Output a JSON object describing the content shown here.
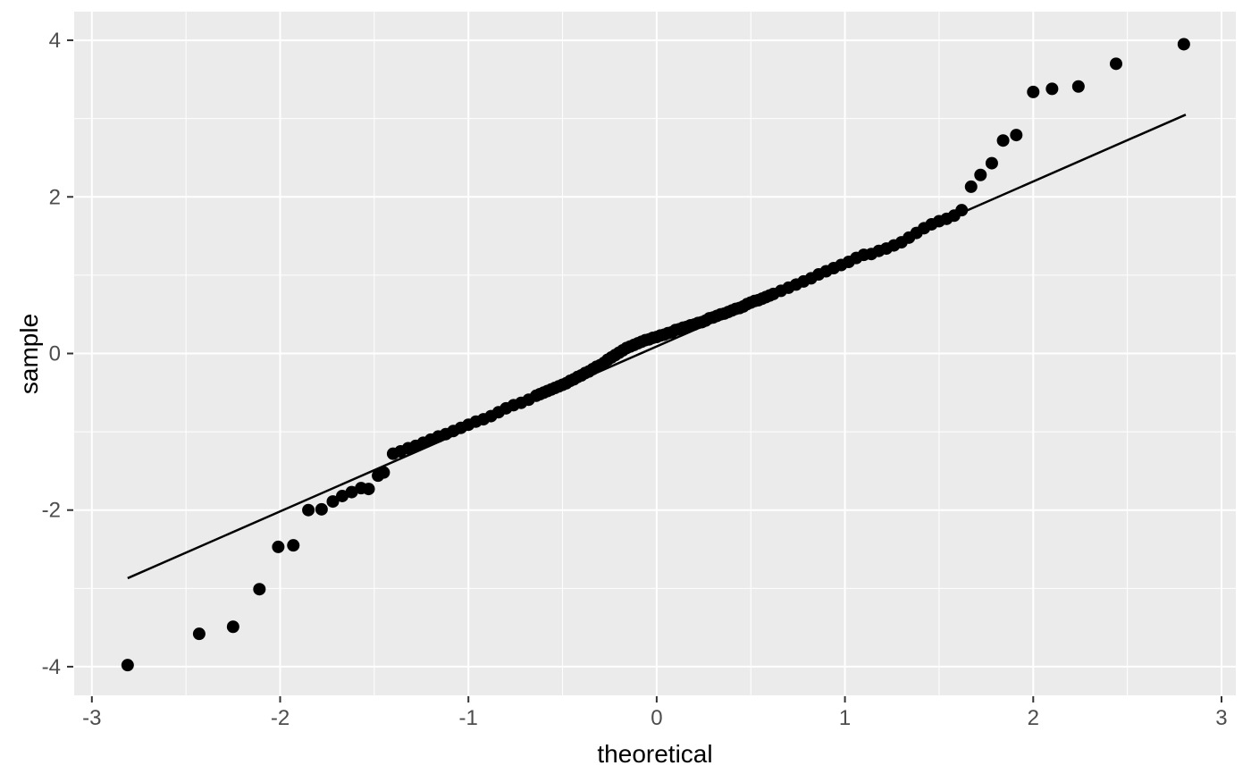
{
  "figure": {
    "kind": "qq-plot",
    "xlabel": "theoretical",
    "ylabel": "sample"
  },
  "colors": {
    "page_bg": "#FFFFFF",
    "panel_bg": "#EBEBEB",
    "grid_major": "#FFFFFF",
    "grid_minor": "#FFFFFF",
    "point": "#000000",
    "line": "#000000",
    "tick_mark": "#333333",
    "tick_label": "#4D4D4D",
    "axis_title": "#000000"
  },
  "chart_data": {
    "type": "scatter",
    "subtype": "qq-plot",
    "title": "",
    "xlabel": "theoretical",
    "ylabel": "sample",
    "xlim": [
      -3.094,
      3.076
    ],
    "ylim": [
      -4.366,
      4.366
    ],
    "grid": true,
    "legend": "none",
    "x_ticks": {
      "values": [
        -3,
        -2,
        -1,
        0,
        1,
        2,
        3
      ],
      "labels": [
        "-3",
        "-2",
        "-1",
        "0",
        "1",
        "2",
        "3"
      ]
    },
    "x_minor_ticks": [
      -2.5,
      -1.5,
      -0.5,
      0.5,
      1.5,
      2.5
    ],
    "y_ticks": {
      "values": [
        -4,
        -2,
        0,
        2,
        4
      ],
      "labels": [
        "-4",
        "-2",
        "0",
        "2",
        "4"
      ]
    },
    "y_minor_ticks": [
      -3,
      -1,
      1,
      3
    ],
    "qq_line": {
      "x1": -2.81,
      "y1": -2.87,
      "x2": 2.81,
      "y2": 3.05
    },
    "points": [
      [
        -2.81,
        -3.98
      ],
      [
        -2.43,
        -3.58
      ],
      [
        -2.25,
        -3.49
      ],
      [
        -2.11,
        -3.01
      ],
      [
        -2.01,
        -2.47
      ],
      [
        -1.93,
        -2.45
      ],
      [
        -1.85,
        -2.0
      ],
      [
        -1.78,
        -1.99
      ],
      [
        -1.72,
        -1.89
      ],
      [
        -1.67,
        -1.82
      ],
      [
        -1.62,
        -1.77
      ],
      [
        -1.57,
        -1.72
      ],
      [
        -1.53,
        -1.73
      ],
      [
        -1.48,
        -1.56
      ],
      [
        -1.45,
        -1.52
      ],
      [
        -1.4,
        -1.28
      ],
      [
        -1.36,
        -1.25
      ],
      [
        -1.32,
        -1.21
      ],
      [
        -1.28,
        -1.18
      ],
      [
        -1.24,
        -1.14
      ],
      [
        -1.2,
        -1.1
      ],
      [
        -1.16,
        -1.06
      ],
      [
        -1.12,
        -1.03
      ],
      [
        -1.08,
        -0.99
      ],
      [
        -1.04,
        -0.95
      ],
      [
        -1.0,
        -0.91
      ],
      [
        -0.96,
        -0.87
      ],
      [
        -0.92,
        -0.84
      ],
      [
        -0.88,
        -0.8
      ],
      [
        -0.84,
        -0.75
      ],
      [
        -0.8,
        -0.7
      ],
      [
        -0.76,
        -0.66
      ],
      [
        -0.72,
        -0.63
      ],
      [
        -0.68,
        -0.59
      ],
      [
        -0.64,
        -0.54
      ],
      [
        -0.62,
        -0.52
      ],
      [
        -0.6,
        -0.5
      ],
      [
        -0.58,
        -0.48
      ],
      [
        -0.56,
        -0.46
      ],
      [
        -0.54,
        -0.44
      ],
      [
        -0.52,
        -0.42
      ],
      [
        -0.5,
        -0.4
      ],
      [
        -0.48,
        -0.38
      ],
      [
        -0.46,
        -0.35
      ],
      [
        -0.44,
        -0.33
      ],
      [
        -0.42,
        -0.3
      ],
      [
        -0.4,
        -0.28
      ],
      [
        -0.38,
        -0.25
      ],
      [
        -0.36,
        -0.23
      ],
      [
        -0.34,
        -0.2
      ],
      [
        -0.32,
        -0.17
      ],
      [
        -0.3,
        -0.15
      ],
      [
        -0.28,
        -0.12
      ],
      [
        -0.26,
        -0.08
      ],
      [
        -0.24,
        -0.05
      ],
      [
        -0.22,
        -0.02
      ],
      [
        -0.2,
        0.01
      ],
      [
        -0.18,
        0.04
      ],
      [
        -0.16,
        0.07
      ],
      [
        -0.14,
        0.09
      ],
      [
        -0.12,
        0.11
      ],
      [
        -0.1,
        0.13
      ],
      [
        -0.08,
        0.15
      ],
      [
        -0.06,
        0.17
      ],
      [
        -0.04,
        0.18
      ],
      [
        -0.02,
        0.2
      ],
      [
        0.0,
        0.21
      ],
      [
        0.02,
        0.23
      ],
      [
        0.04,
        0.24
      ],
      [
        0.06,
        0.26
      ],
      [
        0.08,
        0.27
      ],
      [
        0.1,
        0.3
      ],
      [
        0.12,
        0.31
      ],
      [
        0.14,
        0.33
      ],
      [
        0.16,
        0.34
      ],
      [
        0.18,
        0.36
      ],
      [
        0.2,
        0.37
      ],
      [
        0.22,
        0.39
      ],
      [
        0.24,
        0.4
      ],
      [
        0.26,
        0.42
      ],
      [
        0.28,
        0.45
      ],
      [
        0.3,
        0.46
      ],
      [
        0.32,
        0.48
      ],
      [
        0.34,
        0.5
      ],
      [
        0.36,
        0.51
      ],
      [
        0.38,
        0.53
      ],
      [
        0.4,
        0.55
      ],
      [
        0.42,
        0.57
      ],
      [
        0.44,
        0.58
      ],
      [
        0.46,
        0.6
      ],
      [
        0.48,
        0.63
      ],
      [
        0.5,
        0.65
      ],
      [
        0.52,
        0.67
      ],
      [
        0.54,
        0.68
      ],
      [
        0.56,
        0.7
      ],
      [
        0.58,
        0.72
      ],
      [
        0.6,
        0.74
      ],
      [
        0.62,
        0.76
      ],
      [
        0.66,
        0.8
      ],
      [
        0.7,
        0.84
      ],
      [
        0.74,
        0.88
      ],
      [
        0.78,
        0.92
      ],
      [
        0.82,
        0.96
      ],
      [
        0.86,
        1.01
      ],
      [
        0.9,
        1.05
      ],
      [
        0.94,
        1.09
      ],
      [
        0.98,
        1.13
      ],
      [
        1.02,
        1.17
      ],
      [
        1.06,
        1.22
      ],
      [
        1.1,
        1.26
      ],
      [
        1.14,
        1.27
      ],
      [
        1.18,
        1.31
      ],
      [
        1.22,
        1.34
      ],
      [
        1.26,
        1.38
      ],
      [
        1.3,
        1.42
      ],
      [
        1.34,
        1.48
      ],
      [
        1.38,
        1.54
      ],
      [
        1.42,
        1.6
      ],
      [
        1.46,
        1.65
      ],
      [
        1.5,
        1.69
      ],
      [
        1.54,
        1.72
      ],
      [
        1.58,
        1.76
      ],
      [
        1.62,
        1.83
      ],
      [
        1.67,
        2.13
      ],
      [
        1.72,
        2.28
      ],
      [
        1.78,
        2.43
      ],
      [
        1.84,
        2.72
      ],
      [
        1.91,
        2.79
      ],
      [
        2.0,
        3.34
      ],
      [
        2.1,
        3.38
      ],
      [
        2.24,
        3.41
      ],
      [
        2.44,
        3.7
      ],
      [
        2.8,
        3.95
      ]
    ]
  }
}
